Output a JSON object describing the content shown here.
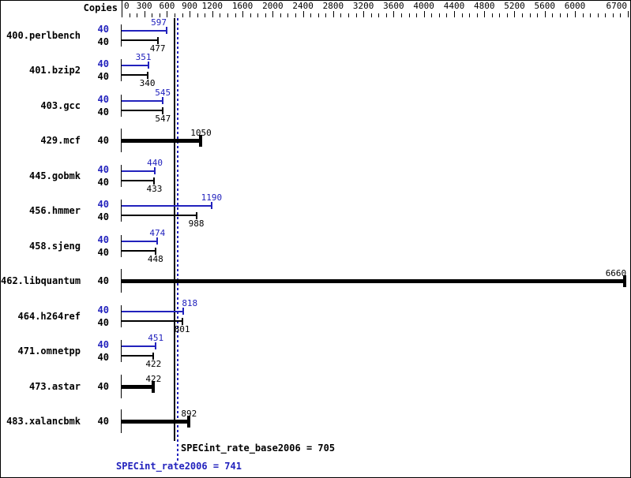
{
  "title_area": {
    "copies_header": "Copies"
  },
  "axis": {
    "max": 6700,
    "minor_step": 100,
    "labeled_ticks": [
      0,
      300,
      600,
      900,
      1200,
      1600,
      2000,
      2400,
      2800,
      3200,
      3600,
      4000,
      4400,
      4800,
      5200,
      5600,
      6000,
      6700
    ]
  },
  "colors": {
    "peak_blue": "#2222bd",
    "base_black": "#000000",
    "background": "#ffffff",
    "border": "#000000"
  },
  "benchmarks": [
    {
      "name": "400.perlbench",
      "copies": 40,
      "peak": 597,
      "base": 477,
      "equal": false
    },
    {
      "name": "401.bzip2",
      "copies": 40,
      "peak": 351,
      "base": 340,
      "equal": false
    },
    {
      "name": "403.gcc",
      "copies": 40,
      "peak": 545,
      "base": 547,
      "equal": false
    },
    {
      "name": "429.mcf",
      "copies": 40,
      "peak": 1050,
      "base": 1050,
      "equal": true
    },
    {
      "name": "445.gobmk",
      "copies": 40,
      "peak": 440,
      "base": 433,
      "equal": false
    },
    {
      "name": "456.hmmer",
      "copies": 40,
      "peak": 1190,
      "base": 988,
      "equal": false
    },
    {
      "name": "458.sjeng",
      "copies": 40,
      "peak": 474,
      "base": 448,
      "equal": false
    },
    {
      "name": "462.libquantum",
      "copies": 40,
      "peak": 6660,
      "base": 6660,
      "equal": true
    },
    {
      "name": "464.h264ref",
      "copies": 40,
      "peak": 818,
      "base": 801,
      "equal": false
    },
    {
      "name": "471.omnetpp",
      "copies": 40,
      "peak": 451,
      "base": 422,
      "equal": false
    },
    {
      "name": "473.astar",
      "copies": 40,
      "peak": 422,
      "base": 422,
      "equal": true
    },
    {
      "name": "483.xalancbmk",
      "copies": 40,
      "peak": 892,
      "base": 892,
      "equal": true
    }
  ],
  "summary": {
    "base_text": "SPECint_rate_base2006 = 705",
    "base_value": 705,
    "peak_text": "SPECint_rate2006 = 741",
    "peak_value": 741
  },
  "chart_data": {
    "type": "bar",
    "orientation": "horizontal",
    "title": "",
    "xlabel": "Copies",
    "ylabel": "",
    "xlim": [
      0,
      6700
    ],
    "grid": false,
    "legend_position": "none",
    "x_ticks": [
      0,
      300,
      600,
      900,
      1200,
      1600,
      2000,
      2400,
      2800,
      3200,
      3600,
      4000,
      4400,
      4800,
      5200,
      5600,
      6000,
      6700
    ],
    "categories": [
      "400.perlbench",
      "401.bzip2",
      "403.gcc",
      "429.mcf",
      "445.gobmk",
      "456.hmmer",
      "458.sjeng",
      "462.libquantum",
      "464.h264ref",
      "471.omnetpp",
      "473.astar",
      "483.xalancbmk"
    ],
    "copies_per_category": [
      40,
      40,
      40,
      40,
      40,
      40,
      40,
      40,
      40,
      40,
      40,
      40
    ],
    "series": [
      {
        "name": "SPECint_rate2006 (peak)",
        "color": "#2222bd",
        "values": [
          597,
          351,
          545,
          1050,
          440,
          1190,
          474,
          6660,
          818,
          451,
          422,
          892
        ]
      },
      {
        "name": "SPECint_rate_base2006 (base)",
        "color": "#000000",
        "values": [
          477,
          340,
          547,
          1050,
          433,
          988,
          448,
          6660,
          801,
          422,
          422,
          892
        ]
      }
    ],
    "equal_base_peak_categories": [
      "429.mcf",
      "462.libquantum",
      "473.astar",
      "483.xalancbmk"
    ],
    "reference_lines": [
      {
        "label": "SPECint_rate_base2006",
        "value": 705,
        "style": "solid",
        "color": "#000000"
      },
      {
        "label": "SPECint_rate2006",
        "value": 741,
        "style": "dotted",
        "color": "#2222bd"
      }
    ]
  }
}
